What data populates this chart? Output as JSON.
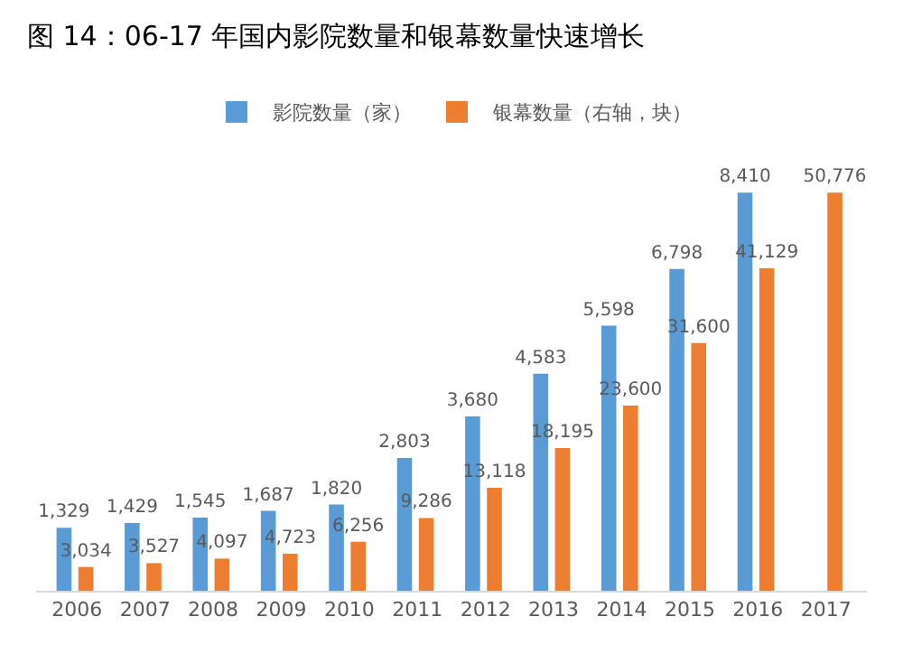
{
  "chart_data": {
    "type": "bar",
    "title": "图 14：06-17 年国内影院数量和银幕数量快速增长",
    "categories": [
      "2006",
      "2007",
      "2008",
      "2009",
      "2010",
      "2011",
      "2012",
      "2013",
      "2014",
      "2015",
      "2016",
      "2017"
    ],
    "series": [
      {
        "name": "影院数量（家）",
        "color": "#5b9bd5",
        "values": [
          1329,
          1429,
          1545,
          1687,
          1820,
          2803,
          3680,
          4583,
          5598,
          6798,
          8410,
          null
        ],
        "value_labels": [
          "1,329",
          "1,429",
          "1,545",
          "1,687",
          "1,820",
          "2,803",
          "3,680",
          "4,583",
          "5,598",
          "6,798",
          "8,410",
          null
        ]
      },
      {
        "name": "银幕数量（右轴，块）",
        "color": "#ed7d31",
        "axis": "y2",
        "values": [
          3034,
          3527,
          4097,
          4723,
          6256,
          9286,
          13118,
          18195,
          23600,
          31600,
          41129,
          50776
        ],
        "value_labels": [
          "3,034",
          "3,527",
          "4,097",
          "4,723",
          "6,256",
          "9,286",
          "13,118",
          "18,195",
          "23,600",
          "31,600",
          "41,129",
          "50,776"
        ]
      }
    ],
    "tick_labels": "x",
    "grid": false,
    "legend": "top"
  }
}
